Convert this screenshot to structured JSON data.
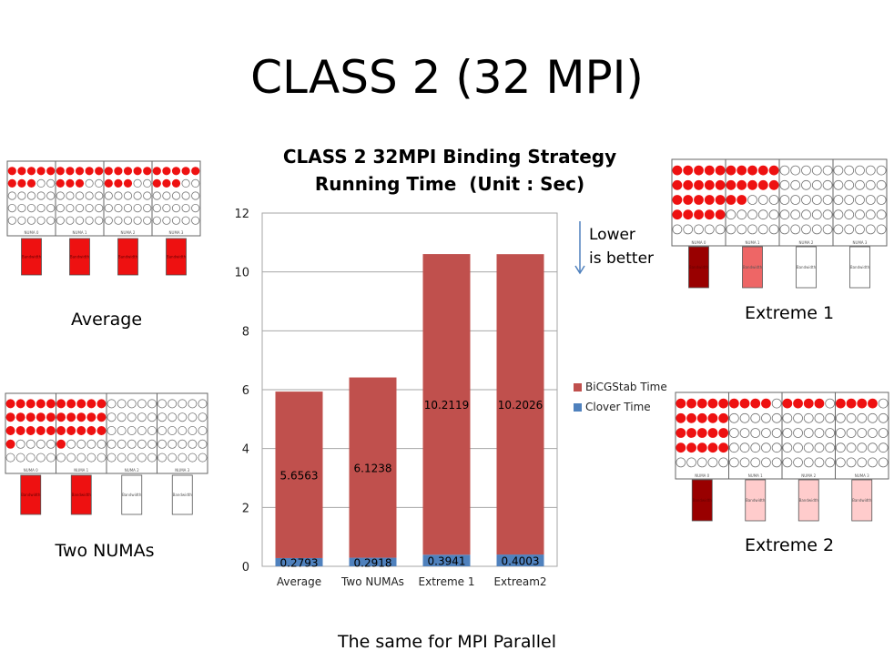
{
  "slide": {
    "title": "CLASS 2 (32 MPI)",
    "footer": "The same for MPI Parallel",
    "note_line1": "Lower",
    "note_line2": "is better"
  },
  "captions": {
    "average": "Average",
    "two_numas": "Two NUMAs",
    "extreme1": "Extreme 1",
    "extreme2": "Extreme 2"
  },
  "diagrams": {
    "numa_labels": [
      "NUMA 0",
      "NUMA 1",
      "NUMA 2",
      "NUMA 3"
    ],
    "bandwidth_label": "Bandwidth",
    "cores_per_numa": 25,
    "average": {
      "active": [
        8,
        8,
        8,
        8
      ],
      "bandwidth": [
        "high",
        "high",
        "high",
        "high"
      ]
    },
    "two_numas": {
      "active": [
        16,
        16,
        0,
        0
      ],
      "bandwidth": [
        "high",
        "high",
        "none",
        "none"
      ]
    },
    "extreme1": {
      "active": [
        20,
        12,
        0,
        0
      ],
      "bandwidth": [
        "max",
        "medium",
        "none",
        "none"
      ]
    },
    "extreme2": {
      "active": [
        20,
        4,
        4,
        4
      ],
      "bandwidth": [
        "max",
        "low",
        "low",
        "low"
      ]
    },
    "colors": {
      "active": "#ee1111",
      "max": "#990000",
      "high": "#ee1111",
      "medium": "#ee6666",
      "low": "#ffcccc",
      "none": "#ffffff"
    }
  },
  "chart_data": {
    "type": "bar",
    "stacked": true,
    "title_line1": "CLASS 2 32MPI Binding Strategy",
    "title_line2": "Running Time  (Unit : Sec)",
    "categories": [
      "Average",
      "Two NUMAs",
      "Extreme 1",
      "Extream2"
    ],
    "series": [
      {
        "name": "Clover Time",
        "values": [
          0.2793,
          0.2918,
          0.3941,
          0.4003
        ],
        "color": "#4f81bd"
      },
      {
        "name": "BiCGStab Time",
        "values": [
          5.6563,
          6.1238,
          10.2119,
          10.2026
        ],
        "color": "#c0504d"
      }
    ],
    "ylim": [
      0,
      12
    ],
    "yticks": [
      0,
      2,
      4,
      6,
      8,
      10,
      12
    ],
    "grid": true,
    "legend": "right"
  }
}
